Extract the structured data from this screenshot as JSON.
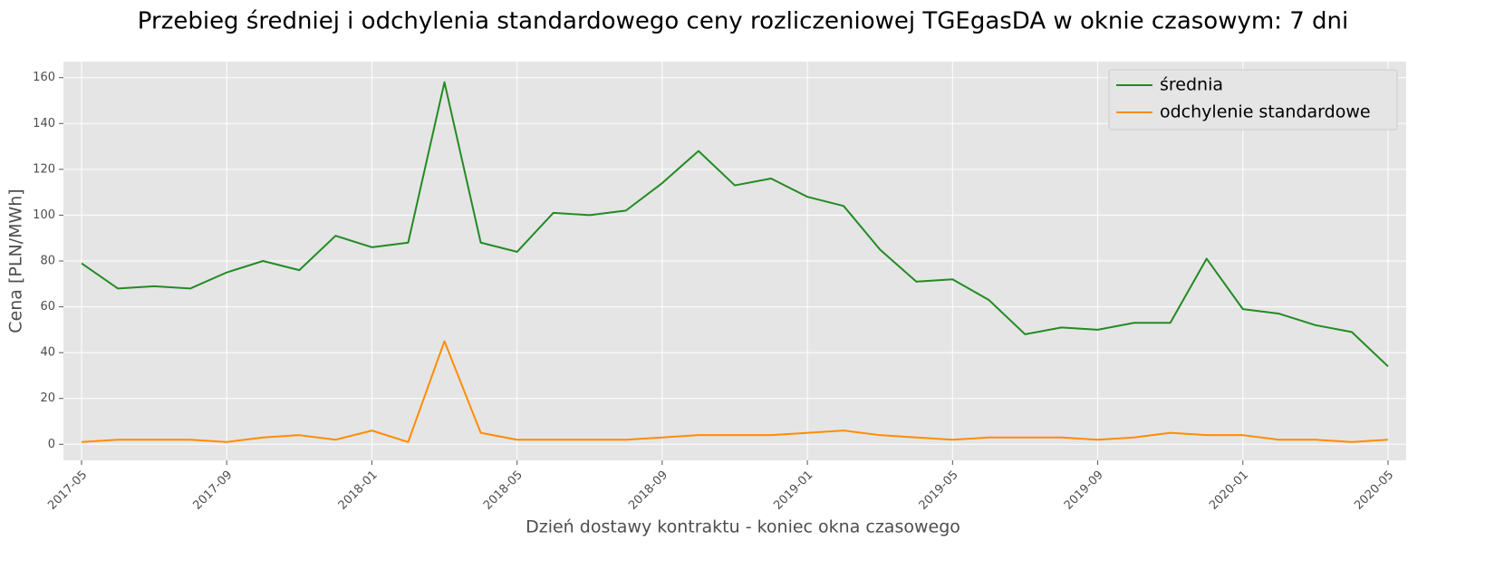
{
  "chart_data": {
    "type": "line",
    "title": "Przebieg średniej i odchylenia standardowego ceny rozliczeniowej TGEgasDA w oknie czasowym: 7 dni",
    "x_label": "Dzień dostawy kontraktu - koniec okna czasowego",
    "y_label": "Cena [PLN/MWh]",
    "x": [
      "2017-05",
      "2017-06",
      "2017-07",
      "2017-08",
      "2017-09",
      "2017-10",
      "2017-11",
      "2017-12",
      "2018-01",
      "2018-02",
      "2018-03",
      "2018-04",
      "2018-05",
      "2018-06",
      "2018-07",
      "2018-08",
      "2018-09",
      "2018-10",
      "2018-11",
      "2018-12",
      "2019-01",
      "2019-02",
      "2019-03",
      "2019-04",
      "2019-05",
      "2019-06",
      "2019-07",
      "2019-08",
      "2019-09",
      "2019-10",
      "2019-11",
      "2019-12",
      "2020-01",
      "2020-02",
      "2020-03",
      "2020-04",
      "2020-05"
    ],
    "series": [
      {
        "name": "średnia",
        "color": "#228b22",
        "values": [
          79,
          68,
          69,
          68,
          75,
          80,
          76,
          91,
          86,
          88,
          158,
          88,
          84,
          101,
          100,
          102,
          114,
          128,
          113,
          116,
          108,
          104,
          85,
          71,
          72,
          63,
          48,
          51,
          50,
          53,
          53,
          81,
          59,
          57,
          52,
          49,
          34
        ]
      },
      {
        "name": "odchylenie standardowe",
        "color": "#ff8c00",
        "values": [
          1,
          2,
          2,
          2,
          1,
          3,
          4,
          2,
          6,
          1,
          45,
          5,
          2,
          2,
          2,
          2,
          3,
          4,
          4,
          4,
          5,
          6,
          4,
          3,
          2,
          3,
          3,
          3,
          2,
          3,
          5,
          4,
          4,
          2,
          2,
          1,
          2
        ]
      }
    ],
    "xlim": [
      "2017-05",
      "2020-05"
    ],
    "xticks": [
      "2017-05",
      "2017-09",
      "2018-01",
      "2018-05",
      "2018-09",
      "2019-01",
      "2019-05",
      "2019-09",
      "2020-01",
      "2020-05"
    ],
    "ylim": [
      -7,
      167
    ],
    "yticks": [
      0,
      20,
      40,
      60,
      80,
      100,
      120,
      140,
      160
    ],
    "grid": true,
    "legend": "upper-right"
  }
}
